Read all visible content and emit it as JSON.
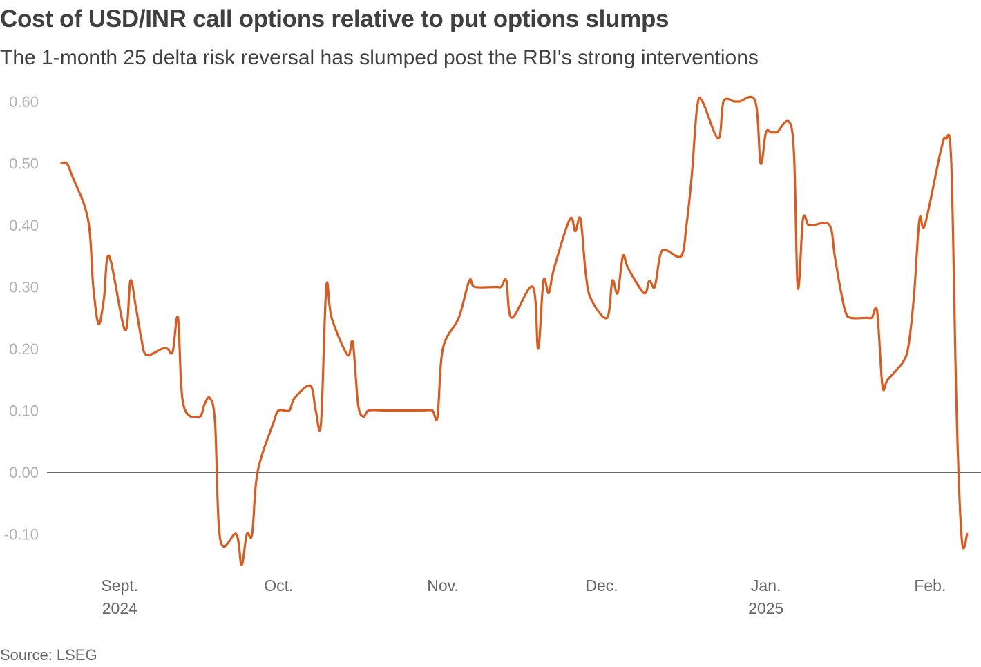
{
  "title": "Cost of USD/INR call options relative to put options slumps",
  "subtitle": "The 1-month 25 delta risk reversal has slumped post the RBI's strong interventions",
  "source": "Source: LSEG",
  "colors": {
    "line": "#dc5a1e",
    "zero_line": "#333333",
    "tick_label": "#b0b0b0",
    "axis_label": "#666666",
    "text": "#404040"
  },
  "chart_data": {
    "type": "line",
    "title": "Cost of USD/INR call options relative to put options slumps",
    "subtitle": "The 1-month 25 delta risk reversal has slumped post the RBI's strong interventions",
    "ylim": [
      -0.15,
      0.62
    ],
    "y_ticks": [
      "0.60",
      "0.50",
      "0.40",
      "0.30",
      "0.20",
      "0.10",
      "0.00",
      "-0.10"
    ],
    "y_tick_values": [
      0.6,
      0.5,
      0.4,
      0.3,
      0.2,
      0.1,
      0.0,
      -0.1
    ],
    "x_ticks": [
      {
        "date": "2024-09-01",
        "label": "Sept.",
        "year": "2024"
      },
      {
        "date": "2024-10-01",
        "label": "Oct.",
        "year": ""
      },
      {
        "date": "2024-11-01",
        "label": "Nov.",
        "year": ""
      },
      {
        "date": "2024-12-01",
        "label": "Dec.",
        "year": ""
      },
      {
        "date": "2025-01-01",
        "label": "Jan.",
        "year": "2025"
      },
      {
        "date": "2025-02-01",
        "label": "Feb.",
        "year": ""
      }
    ],
    "grid": false,
    "legend": "none",
    "series": [
      {
        "points": [
          [
            "2024-08-21",
            0.5
          ],
          [
            "2024-08-22",
            0.5
          ],
          [
            "2024-08-23",
            0.48
          ],
          [
            "2024-08-26",
            0.41
          ],
          [
            "2024-08-27",
            0.3
          ],
          [
            "2024-08-28",
            0.24
          ],
          [
            "2024-08-29",
            0.28
          ],
          [
            "2024-08-30",
            0.35
          ],
          [
            "2024-09-02",
            0.23
          ],
          [
            "2024-09-03",
            0.31
          ],
          [
            "2024-09-04",
            0.27
          ],
          [
            "2024-09-05",
            0.22
          ],
          [
            "2024-09-06",
            0.19
          ],
          [
            "2024-09-09",
            0.2
          ],
          [
            "2024-09-10",
            0.2
          ],
          [
            "2024-09-11",
            0.195
          ],
          [
            "2024-09-12",
            0.25
          ],
          [
            "2024-09-13",
            0.11
          ],
          [
            "2024-09-16",
            0.09
          ],
          [
            "2024-09-17",
            0.11
          ],
          [
            "2024-09-18",
            0.12
          ],
          [
            "2024-09-19",
            0.08
          ],
          [
            "2024-09-20",
            -0.11
          ],
          [
            "2024-09-23",
            -0.1
          ],
          [
            "2024-09-24",
            -0.15
          ],
          [
            "2024-09-25",
            -0.1
          ],
          [
            "2024-09-26",
            -0.1
          ],
          [
            "2024-09-27",
            0.0
          ],
          [
            "2024-09-30",
            0.08
          ],
          [
            "2024-10-01",
            0.1
          ],
          [
            "2024-10-03",
            0.1
          ],
          [
            "2024-10-04",
            0.12
          ],
          [
            "2024-10-07",
            0.14
          ],
          [
            "2024-10-08",
            0.1
          ],
          [
            "2024-10-09",
            0.08
          ],
          [
            "2024-10-10",
            0.3
          ],
          [
            "2024-10-11",
            0.25
          ],
          [
            "2024-10-14",
            0.19
          ],
          [
            "2024-10-15",
            0.21
          ],
          [
            "2024-10-16",
            0.11
          ],
          [
            "2024-10-17",
            0.09
          ],
          [
            "2024-10-18",
            0.1
          ],
          [
            "2024-10-21",
            0.1
          ],
          [
            "2024-10-24",
            0.1
          ],
          [
            "2024-10-28",
            0.1
          ],
          [
            "2024-10-30",
            0.1
          ],
          [
            "2024-10-31",
            0.09
          ],
          [
            "2024-11-01",
            0.2
          ],
          [
            "2024-11-04",
            0.25
          ],
          [
            "2024-11-06",
            0.31
          ],
          [
            "2024-11-07",
            0.3
          ],
          [
            "2024-11-11",
            0.3
          ],
          [
            "2024-11-12",
            0.3
          ],
          [
            "2024-11-13",
            0.31
          ],
          [
            "2024-11-14",
            0.25
          ],
          [
            "2024-11-18",
            0.3
          ],
          [
            "2024-11-19",
            0.2
          ],
          [
            "2024-11-20",
            0.31
          ],
          [
            "2024-11-21",
            0.29
          ],
          [
            "2024-11-22",
            0.33
          ],
          [
            "2024-11-25",
            0.41
          ],
          [
            "2024-11-26",
            0.39
          ],
          [
            "2024-11-27",
            0.41
          ],
          [
            "2024-11-28",
            0.32
          ],
          [
            "2024-11-29",
            0.28
          ],
          [
            "2024-12-02",
            0.25
          ],
          [
            "2024-12-03",
            0.31
          ],
          [
            "2024-12-04",
            0.29
          ],
          [
            "2024-12-05",
            0.35
          ],
          [
            "2024-12-06",
            0.33
          ],
          [
            "2024-12-09",
            0.29
          ],
          [
            "2024-12-10",
            0.31
          ],
          [
            "2024-12-11",
            0.3
          ],
          [
            "2024-12-12",
            0.35
          ],
          [
            "2024-12-13",
            0.36
          ],
          [
            "2024-12-16",
            0.35
          ],
          [
            "2024-12-17",
            0.4
          ],
          [
            "2024-12-18",
            0.48
          ],
          [
            "2024-12-19",
            0.59
          ],
          [
            "2024-12-20",
            0.6
          ],
          [
            "2024-12-23",
            0.54
          ],
          [
            "2024-12-24",
            0.6
          ],
          [
            "2024-12-26",
            0.6
          ],
          [
            "2024-12-27",
            0.6
          ],
          [
            "2024-12-30",
            0.6
          ],
          [
            "2024-12-31",
            0.5
          ],
          [
            "2025-01-01",
            0.55
          ],
          [
            "2025-01-02",
            0.55
          ],
          [
            "2025-01-03",
            0.55
          ],
          [
            "2025-01-06",
            0.55
          ],
          [
            "2025-01-07",
            0.3
          ],
          [
            "2025-01-08",
            0.41
          ],
          [
            "2025-01-09",
            0.4
          ],
          [
            "2025-01-10",
            0.4
          ],
          [
            "2025-01-13",
            0.4
          ],
          [
            "2025-01-14",
            0.35
          ],
          [
            "2025-01-15",
            0.3
          ],
          [
            "2025-01-16",
            0.26
          ],
          [
            "2025-01-17",
            0.25
          ],
          [
            "2025-01-20",
            0.25
          ],
          [
            "2025-01-21",
            0.25
          ],
          [
            "2025-01-22",
            0.26
          ],
          [
            "2025-01-23",
            0.14
          ],
          [
            "2025-01-24",
            0.15
          ],
          [
            "2025-01-27",
            0.18
          ],
          [
            "2025-01-28",
            0.21
          ],
          [
            "2025-01-29",
            0.29
          ],
          [
            "2025-01-30",
            0.41
          ],
          [
            "2025-01-31",
            0.4
          ],
          [
            "2025-02-03",
            0.52
          ],
          [
            "2025-02-04",
            0.54
          ],
          [
            "2025-02-05",
            0.5
          ],
          [
            "2025-02-06",
            0.1
          ],
          [
            "2025-02-07",
            -0.11
          ],
          [
            "2025-02-08",
            -0.1
          ]
        ]
      }
    ]
  }
}
